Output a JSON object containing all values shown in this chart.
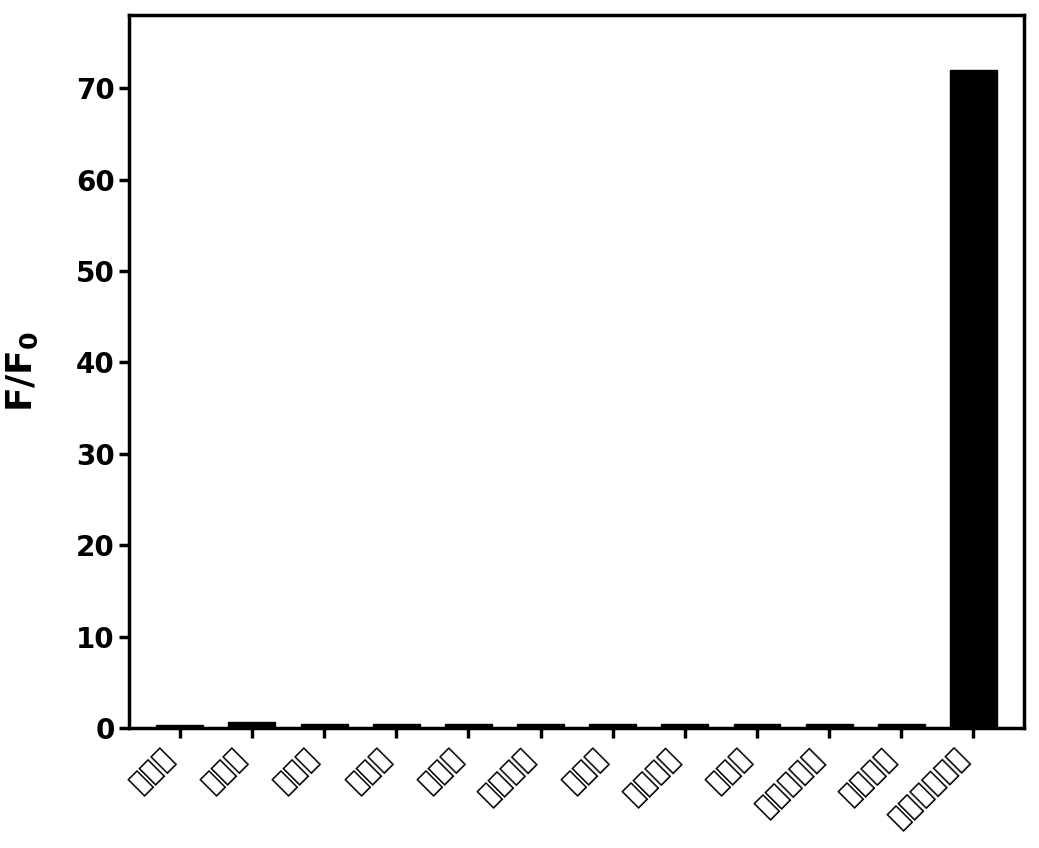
{
  "categories": [
    "空白样",
    "组氨酸",
    "赖氨酸",
    "色氨酸",
    "古氨酸",
    "谷氨酰胺",
    "精氨酸",
    "半胱氨酸",
    "脆氨酸",
    "天门冬氨酸",
    "天外酰胺",
    "人血清白蛋白"
  ],
  "values": [
    0.3,
    0.7,
    0.4,
    0.4,
    0.4,
    0.4,
    0.4,
    0.5,
    0.4,
    0.4,
    0.4,
    72.0
  ],
  "bar_color": "#000000",
  "ylabel_line1": "F/F",
  "ylabel_sub": "0",
  "ylim": [
    0,
    78
  ],
  "yticks": [
    0,
    10,
    20,
    30,
    40,
    50,
    60,
    70
  ],
  "background_color": "#ffffff",
  "tick_fontsize": 20,
  "ylabel_fontsize": 24,
  "bar_width": 0.65
}
